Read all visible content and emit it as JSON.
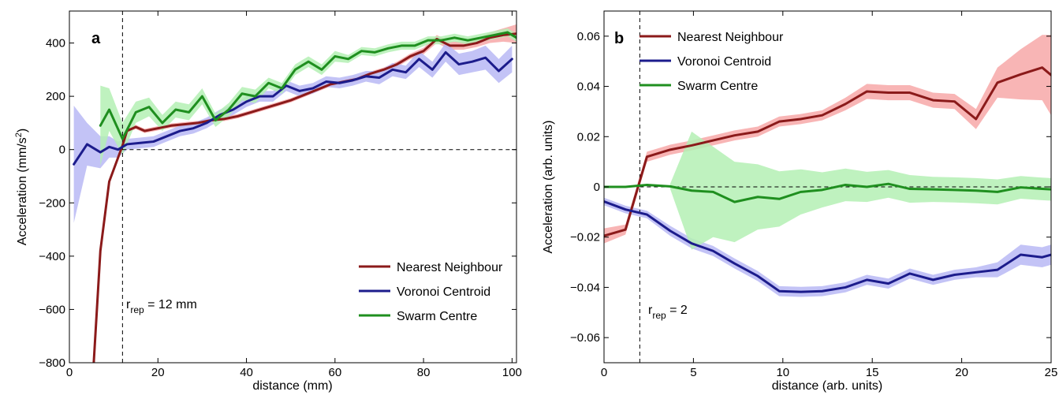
{
  "chart_data": [
    {
      "type": "line",
      "panel_label": "a",
      "xlabel": "distance (mm)",
      "ylabel": "Acceleration (mm/s",
      "ylabel_sup": "2",
      "ylabel_close": ")",
      "xlim": [
        0,
        101
      ],
      "ylim": [
        -800,
        520
      ],
      "xticks": [
        0,
        20,
        40,
        60,
        80,
        100
      ],
      "yticks": [
        -800,
        -600,
        -400,
        -200,
        0,
        200,
        400
      ],
      "ytick_labels": [
        "−800",
        "−600",
        "−400",
        "−200",
        "0",
        "200",
        "400"
      ],
      "xtick_labels": [
        "0",
        "20",
        "40",
        "60",
        "80",
        "100"
      ],
      "annotation": {
        "prefix": "r",
        "sub": "rep",
        "suffix": " = 12 mm",
        "x": 12
      },
      "legend_position": "bottom-right",
      "series": [
        {
          "name": "Nearest Neighbour",
          "color": "#8b1a1a",
          "band_color": "#f7a8a8",
          "x": [
            7,
            9,
            11,
            12,
            13,
            15,
            17,
            20,
            23,
            26,
            29,
            32,
            35,
            38,
            41,
            44,
            47,
            50,
            53,
            56,
            59,
            62,
            65,
            68,
            71,
            74,
            77,
            80,
            83,
            86,
            89,
            92,
            95,
            98,
            101
          ],
          "y": [
            -380,
            -120,
            -30,
            15,
            70,
            85,
            70,
            80,
            90,
            95,
            100,
            110,
            115,
            125,
            140,
            155,
            170,
            185,
            205,
            225,
            245,
            255,
            265,
            285,
            300,
            320,
            350,
            370,
            415,
            390,
            390,
            400,
            420,
            430,
            435
          ],
          "band": [
            5,
            5,
            5,
            5,
            8,
            8,
            8,
            8,
            8,
            8,
            8,
            8,
            8,
            8,
            8,
            8,
            8,
            8,
            8,
            8,
            8,
            8,
            8,
            8,
            8,
            10,
            10,
            12,
            15,
            15,
            15,
            15,
            20,
            25,
            35
          ],
          "offscreen_start": {
            "x": 5.5,
            "y": -800
          }
        },
        {
          "name": "Voronoi Centroid",
          "color": "#1c1c8c",
          "band_color": "#b8b8f5",
          "x": [
            1,
            4,
            7,
            9,
            11,
            13,
            16,
            19,
            22,
            25,
            28,
            31,
            34,
            37,
            40,
            43,
            46,
            49,
            52,
            55,
            58,
            61,
            64,
            67,
            70,
            73,
            76,
            79,
            82,
            85,
            88,
            91,
            94,
            97,
            100
          ],
          "y": [
            -55,
            20,
            -10,
            10,
            0,
            20,
            25,
            30,
            50,
            70,
            80,
            100,
            130,
            150,
            180,
            200,
            200,
            240,
            220,
            230,
            255,
            250,
            260,
            275,
            270,
            300,
            290,
            340,
            300,
            365,
            320,
            330,
            345,
            295,
            340
          ],
          "band": [
            220,
            80,
            60,
            40,
            30,
            20,
            20,
            20,
            20,
            20,
            20,
            20,
            20,
            20,
            20,
            20,
            20,
            20,
            20,
            20,
            20,
            20,
            20,
            20,
            25,
            25,
            25,
            30,
            30,
            35,
            40,
            40,
            45,
            45,
            50
          ]
        },
        {
          "name": "Swarm Centre",
          "color": "#1f8f1f",
          "band_color": "#b4f0b4",
          "x": [
            7,
            9,
            12,
            15,
            18,
            21,
            24,
            27,
            30,
            33,
            36,
            39,
            42,
            45,
            48,
            51,
            54,
            57,
            60,
            63,
            66,
            69,
            72,
            75,
            78,
            81,
            84,
            87,
            90,
            93,
            96,
            99,
            101
          ],
          "y": [
            90,
            150,
            40,
            140,
            160,
            100,
            150,
            140,
            200,
            110,
            150,
            210,
            200,
            250,
            230,
            300,
            330,
            300,
            350,
            340,
            370,
            365,
            380,
            390,
            390,
            410,
            410,
            420,
            410,
            420,
            430,
            440,
            420
          ],
          "band": [
            150,
            80,
            60,
            40,
            35,
            30,
            30,
            30,
            30,
            25,
            25,
            25,
            25,
            20,
            20,
            20,
            20,
            20,
            20,
            15,
            15,
            15,
            15,
            15,
            15,
            15,
            15,
            15,
            15,
            15,
            15,
            15,
            15
          ]
        }
      ]
    },
    {
      "type": "line",
      "panel_label": "b",
      "xlabel": "distance (arb. units)",
      "ylabel": "Acceleration (arb. units)",
      "xlim": [
        0,
        25
      ],
      "ylim": [
        -0.07,
        0.07
      ],
      "xticks": [
        0,
        5,
        10,
        15,
        20,
        25
      ],
      "yticks": [
        -0.06,
        -0.04,
        -0.02,
        0,
        0.02,
        0.04,
        0.06
      ],
      "ytick_labels": [
        "−0.06",
        "−0.04",
        "−0.02",
        "0",
        "0.02",
        "0.04",
        "0.06"
      ],
      "xtick_labels": [
        "0",
        "5",
        "10",
        "15",
        "20",
        "25"
      ],
      "annotation": {
        "prefix": "r",
        "sub": "rep",
        "suffix": " =  2",
        "x": 2
      },
      "legend_position": "top-left",
      "series": [
        {
          "name": "Nearest Neighbour",
          "color": "#8b1a1a",
          "band_color": "#f7a8a8",
          "x": [
            0,
            1.2,
            2.4,
            3.7,
            4.9,
            6.1,
            7.3,
            8.6,
            9.8,
            11,
            12.2,
            13.5,
            14.7,
            15.9,
            17.1,
            18.4,
            19.6,
            20.8,
            22,
            23.3,
            24.5,
            25
          ],
          "y": [
            -0.0195,
            -0.017,
            0.012,
            0.0148,
            0.0165,
            0.0185,
            0.0205,
            0.022,
            0.026,
            0.027,
            0.0285,
            0.033,
            0.038,
            0.0375,
            0.0375,
            0.0345,
            0.034,
            0.027,
            0.0415,
            0.0448,
            0.0475,
            0.0445
          ],
          "band": [
            0.003,
            0.002,
            0.002,
            0.002,
            0.002,
            0.002,
            0.002,
            0.002,
            0.002,
            0.002,
            0.002,
            0.0025,
            0.003,
            0.003,
            0.003,
            0.003,
            0.003,
            0.004,
            0.006,
            0.01,
            0.013,
            0.016
          ]
        },
        {
          "name": "Voronoi Centroid",
          "color": "#1c1c8c",
          "band_color": "#b8b8f5",
          "x": [
            0,
            1.2,
            2.4,
            3.7,
            4.9,
            6.1,
            7.3,
            8.6,
            9.8,
            11,
            12.2,
            13.5,
            14.7,
            15.9,
            17.1,
            18.4,
            19.6,
            20.8,
            22,
            23.3,
            24.5,
            25
          ],
          "y": [
            -0.0058,
            -0.009,
            -0.011,
            -0.0175,
            -0.0225,
            -0.0255,
            -0.0305,
            -0.0355,
            -0.0415,
            -0.0418,
            -0.0415,
            -0.04,
            -0.037,
            -0.0385,
            -0.0345,
            -0.037,
            -0.035,
            -0.034,
            -0.033,
            -0.027,
            -0.028,
            -0.027
          ],
          "band": [
            0.0015,
            0.0015,
            0.0015,
            0.002,
            0.002,
            0.002,
            0.002,
            0.002,
            0.002,
            0.002,
            0.002,
            0.002,
            0.002,
            0.002,
            0.002,
            0.002,
            0.002,
            0.002,
            0.003,
            0.004,
            0.004,
            0.004
          ]
        },
        {
          "name": "Swarm Centre",
          "color": "#1f8f1f",
          "band_color": "#b4f0b4",
          "x": [
            0,
            1.2,
            2.4,
            3.7,
            4.9,
            6.1,
            7.3,
            8.6,
            9.8,
            11,
            12.2,
            13.5,
            14.7,
            15.9,
            17.1,
            18.4,
            19.6,
            20.8,
            22,
            23.3,
            24.5,
            25
          ],
          "y": [
            0,
            0,
            0.0008,
            0.0002,
            -0.0015,
            -0.002,
            -0.006,
            -0.004,
            -0.0048,
            -0.002,
            -0.0012,
            0.0008,
            0,
            0.0012,
            -0.0008,
            -0.001,
            -0.0012,
            -0.0015,
            -0.002,
            -0.0002,
            -0.0008,
            -0.001
          ],
          "band": [
            0.0005,
            0.0005,
            0.001,
            0.001,
            0.0235,
            0.018,
            0.016,
            0.013,
            0.011,
            0.009,
            0.007,
            0.0065,
            0.006,
            0.0055,
            0.0055,
            0.005,
            0.005,
            0.005,
            0.005,
            0.0045,
            0.0045,
            0.0045
          ],
          "band_start_x": 3.7
        }
      ]
    }
  ]
}
